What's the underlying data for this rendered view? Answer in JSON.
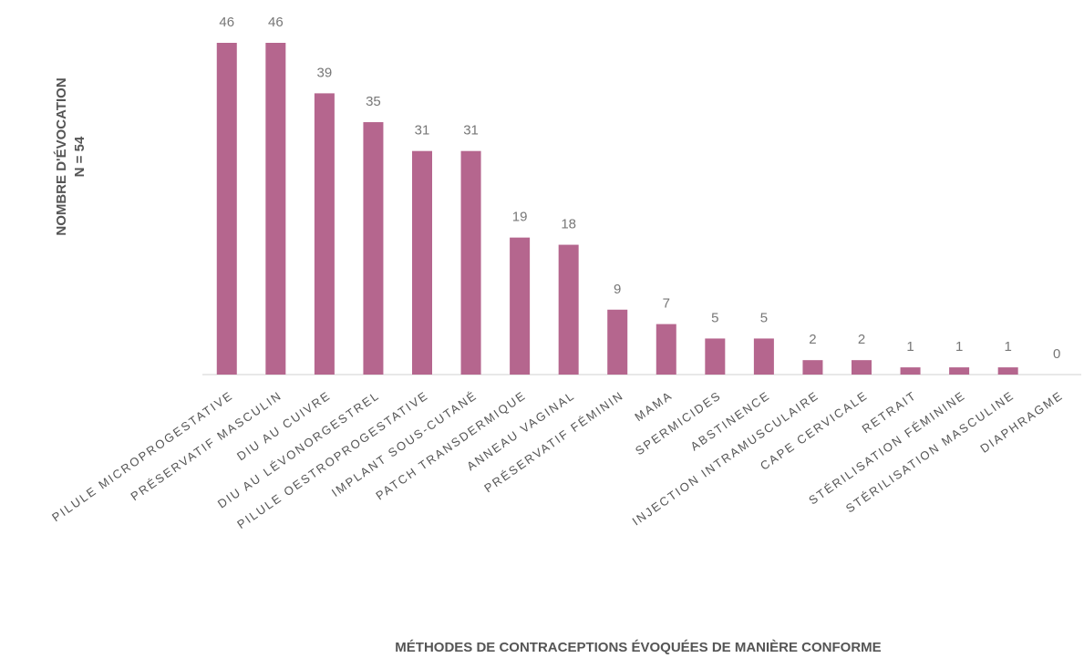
{
  "chart_data": {
    "type": "bar",
    "x_label": "MÉTHODES DE CONTRACEPTIONS ÉVOQUÉES DE MANIÈRE CONFORME",
    "y_label": [
      "NOMBRE D'ÉVOCATION",
      "N = 54"
    ],
    "categories": [
      "PILULE MICROPROGESTATIVE",
      "PRÉSERVATIF MASCULIN",
      "DIU AU CUIVRE",
      "DIU AU LÉVONORGESTREL",
      "PILULE OESTROPROGESTATIVE",
      "IMPLANT SOUS-CUTANÉ",
      "PATCH TRANSDERMIQUE",
      "ANNEAU VAGINAL",
      "PRÉSERVATIF FÉMININ",
      "MAMA",
      "SPERMICIDES",
      "ABSTINENCE",
      "INJECTION INTRAMUSCULAIRE",
      "CAPE CERVICALE",
      "RETRAIT",
      "STÉRILISATION FÉMININE",
      "STÉRILISATION MASCULINE",
      "DIAPHRAGME"
    ],
    "values": [
      46,
      46,
      39,
      35,
      31,
      31,
      19,
      18,
      9,
      7,
      5,
      5,
      2,
      2,
      1,
      1,
      1,
      0
    ],
    "color": "#b5668e"
  }
}
